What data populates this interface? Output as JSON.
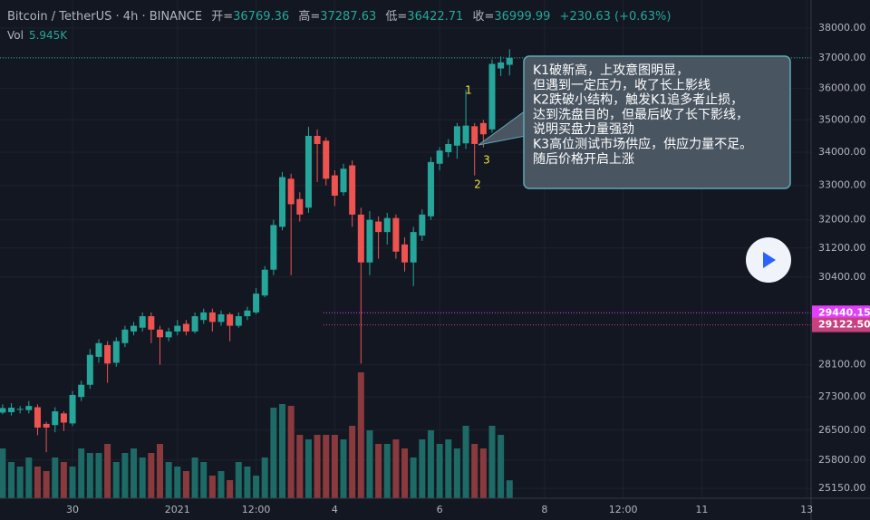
{
  "header": {
    "symbol": "Bitcoin / TetherUS · 4h · BINANCE",
    "open_label": "开=",
    "high_label": "高=",
    "low_label": "低=",
    "close_label": "收=",
    "change": "+230.63 (+0.63%)",
    "volume_name": "Vol",
    "volume_value": "5.945K"
  },
  "chart_data": {
    "type": "candlestick",
    "categories": [
      null,
      null,
      null,
      null,
      null,
      null,
      null,
      null,
      null,
      null,
      null,
      null,
      null,
      null,
      null,
      null,
      null,
      null,
      null,
      null,
      null,
      null,
      null,
      null,
      null,
      null,
      null,
      null,
      null,
      null,
      null,
      null,
      null,
      null,
      null,
      null,
      null,
      null,
      null,
      null,
      null,
      null,
      null,
      null,
      null,
      null,
      null,
      null,
      null,
      null,
      null,
      null,
      null,
      null,
      null,
      null,
      null,
      null,
      null
    ],
    "open": [
      26920,
      26930,
      27000,
      26980,
      27050,
      26650,
      26620,
      26900,
      26660,
      27300,
      27600,
      28300,
      28600,
      28150,
      28650,
      28950,
      29050,
      29350,
      29000,
      28800,
      28950,
      29150,
      28950,
      29250,
      29450,
      29200,
      29400,
      29100,
      29350,
      29450,
      29900,
      30600,
      31800,
      33200,
      32600,
      32350,
      34500,
      34350,
      33300,
      32800,
      33600,
      32150,
      30800,
      31950,
      31650,
      32050,
      31300,
      30800,
      31550,
      32100,
      33650,
      34000,
      34200,
      34270,
      34800,
      34900,
      34700,
      36650,
      36769.36
    ],
    "high": [
      27120,
      27150,
      27080,
      27200,
      27120,
      26700,
      27050,
      26950,
      27450,
      27700,
      28500,
      28750,
      28700,
      28800,
      29100,
      29200,
      29450,
      29450,
      29100,
      29050,
      29250,
      29250,
      29450,
      29550,
      29550,
      29500,
      29450,
      29450,
      29600,
      30100,
      30700,
      32000,
      33400,
      33350,
      32800,
      34780,
      34700,
      34450,
      33450,
      33650,
      33750,
      32350,
      32250,
      32100,
      32200,
      32150,
      31500,
      31800,
      32300,
      33850,
      34150,
      34400,
      34900,
      35950,
      34900,
      35000,
      36950,
      37050,
      37287.63
    ],
    "low": [
      26880,
      26850,
      26900,
      26900,
      26380,
      25980,
      26450,
      26480,
      26600,
      27200,
      27500,
      28150,
      27650,
      28050,
      28550,
      28850,
      28950,
      28650,
      28100,
      28700,
      28850,
      28850,
      28900,
      29150,
      28950,
      29100,
      28700,
      29050,
      29250,
      29400,
      29850,
      30450,
      31700,
      30450,
      31950,
      32200,
      33100,
      33000,
      32400,
      32700,
      31800,
      28130,
      30450,
      30900,
      31300,
      30900,
      30550,
      30150,
      31400,
      32000,
      33450,
      33850,
      33800,
      34100,
      33300,
      34150,
      34600,
      36400,
      36422.71
    ],
    "close": [
      27030,
      27040,
      27010,
      27080,
      26560,
      26560,
      26950,
      26680,
      27350,
      27600,
      28350,
      28650,
      28130,
      28700,
      29000,
      29100,
      29350,
      29000,
      28800,
      28950,
      29100,
      28950,
      29350,
      29450,
      29200,
      29400,
      29100,
      29350,
      29500,
      29950,
      30600,
      31850,
      33250,
      32450,
      32150,
      34500,
      34250,
      33200,
      32700,
      33500,
      32150,
      30800,
      32000,
      31650,
      32050,
      31100,
      30800,
      31650,
      32150,
      33700,
      34050,
      34250,
      34800,
      34820,
      34250,
      34550,
      36800,
      36850,
      36999.99
    ],
    "volume": [
      16500,
      12000,
      10500,
      13500,
      10500,
      9000,
      13500,
      12000,
      10500,
      16500,
      15000,
      15000,
      18000,
      12000,
      15000,
      16500,
      13500,
      15000,
      18000,
      12000,
      10500,
      9000,
      13500,
      12000,
      7500,
      9000,
      6000,
      12000,
      10500,
      7500,
      13500,
      30000,
      31200,
      30600,
      21000,
      19500,
      21000,
      21000,
      21000,
      19500,
      24000,
      41700,
      22500,
      18000,
      18000,
      19500,
      16500,
      13500,
      19500,
      22500,
      18000,
      19500,
      16500,
      24000,
      18000,
      16500,
      24000,
      21000,
      5945
    ],
    "up_color": "#26a69a",
    "down_color": "#ef5350",
    "up_volume_color": "#1d6a66",
    "down_volume_color": "#8a3a3c",
    "log_scale": true,
    "grid": true,
    "ylim": [
      24930,
      38970
    ],
    "yticks": [
      {
        "value": 38000,
        "label": "38000.00"
      },
      {
        "value": 37000,
        "label": "37000.00"
      },
      {
        "value": 36000,
        "label": "36000.00"
      },
      {
        "value": 35000,
        "label": "35000.00"
      },
      {
        "value": 34000,
        "label": "34000.00"
      },
      {
        "value": 33000,
        "label": "33000.00"
      },
      {
        "value": 32000,
        "label": "32000.00"
      },
      {
        "value": 31200,
        "label": "31200.00"
      },
      {
        "value": 30400,
        "label": "30400.00"
      },
      {
        "value": 28100,
        "label": "28100.00"
      },
      {
        "value": 27300,
        "label": "27300.00"
      },
      {
        "value": 26500,
        "label": "26500.00"
      },
      {
        "value": 25800,
        "label": "25800.00"
      },
      {
        "value": 25150,
        "label": "25150.00"
      }
    ],
    "xlim": [
      -0.3,
      92.5
    ],
    "xticks": [
      {
        "value": 8,
        "label": "30"
      },
      {
        "value": 20,
        "label": "2021"
      },
      {
        "value": 29,
        "label": "12:00"
      },
      {
        "value": 38,
        "label": "4"
      },
      {
        "value": 50,
        "label": "6"
      },
      {
        "value": 62,
        "label": "8"
      },
      {
        "value": 71,
        "label": "12:00"
      },
      {
        "value": 80,
        "label": "11"
      },
      {
        "value": 92,
        "label": "13"
      }
    ],
    "price_lines": [
      {
        "value": 29440.15,
        "label": "29440.15",
        "color": "#e040fb"
      },
      {
        "value": 29122.5,
        "label": "29122.50",
        "color": "#c8407f"
      }
    ],
    "annotations": [
      "1",
      "2",
      "3"
    ],
    "callout": [
      "K1破新高，上攻意图明显，",
      "但遇到一定压力，收了长上影线",
      "K2跌破小结构，触发K1追多者止损，",
      "达到洗盘目的，但最后收了长下影线，",
      "说明买盘力量强劲",
      "K3高位测试市场供应，供应力量不足。",
      "随后价格开启上涨"
    ]
  }
}
